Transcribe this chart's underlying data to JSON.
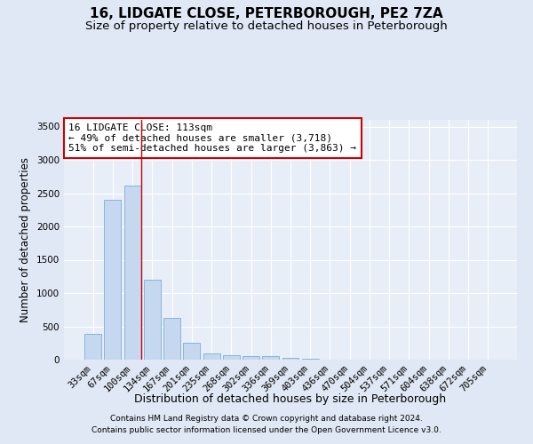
{
  "title": "16, LIDGATE CLOSE, PETERBOROUGH, PE2 7ZA",
  "subtitle": "Size of property relative to detached houses in Peterborough",
  "xlabel": "Distribution of detached houses by size in Peterborough",
  "ylabel": "Number of detached properties",
  "categories": [
    "33sqm",
    "67sqm",
    "100sqm",
    "134sqm",
    "167sqm",
    "201sqm",
    "235sqm",
    "268sqm",
    "302sqm",
    "336sqm",
    "369sqm",
    "403sqm",
    "436sqm",
    "470sqm",
    "504sqm",
    "537sqm",
    "571sqm",
    "604sqm",
    "638sqm",
    "672sqm",
    "705sqm"
  ],
  "values": [
    390,
    2400,
    2610,
    1200,
    630,
    250,
    100,
    70,
    60,
    50,
    30,
    10,
    5,
    5,
    3,
    2,
    2,
    2,
    1,
    1,
    1
  ],
  "bar_color": "#c5d8f0",
  "bar_edge_color": "#7aadd4",
  "vline_color": "#cc0000",
  "vline_pos": 2.425,
  "ylim": [
    0,
    3600
  ],
  "yticks": [
    0,
    500,
    1000,
    1500,
    2000,
    2500,
    3000,
    3500
  ],
  "annotation_text_line1": "16 LIDGATE CLOSE: 113sqm",
  "annotation_text_line2": "← 49% of detached houses are smaller (3,718)",
  "annotation_text_line3": "51% of semi-detached houses are larger (3,863) →",
  "footer_line1": "Contains HM Land Registry data © Crown copyright and database right 2024.",
  "footer_line2": "Contains public sector information licensed under the Open Government Licence v3.0.",
  "background_color": "#e0e8f5",
  "plot_bg_color": "#e8eef8",
  "grid_color": "#ffffff",
  "title_fontsize": 11,
  "subtitle_fontsize": 9.5,
  "axis_label_fontsize": 8.5,
  "tick_fontsize": 7.5,
  "annotation_fontsize": 8,
  "footer_fontsize": 6.5
}
